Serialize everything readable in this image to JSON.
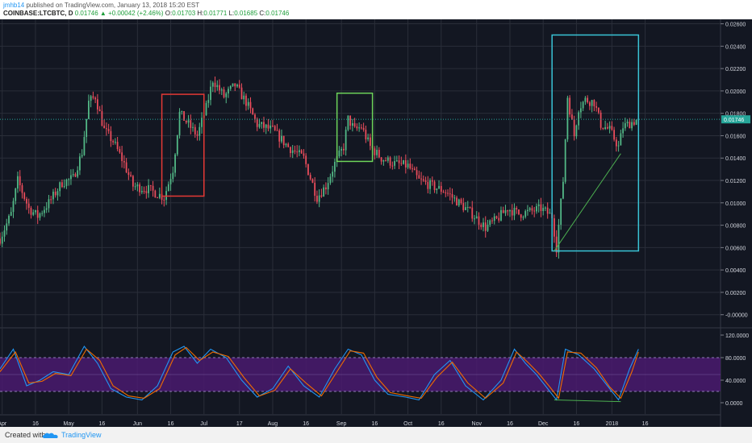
{
  "header": {
    "user": "jmhb14",
    "published": "published on TradingView.com, January 13, 2018 15:20 EST",
    "symbol": "COINBASE:LTCBTC, D",
    "last": "0.01746",
    "change": "+0.00042 (+2.46%)",
    "o_label": "O:",
    "o": "0.01703",
    "h_label": "H:",
    "h": "0.01771",
    "l_label": "L:",
    "l": "0.01685",
    "c_label": "C:",
    "c": "0.01746"
  },
  "footer": {
    "created": "Created with",
    "brand": "TradingView",
    "logo_icon": "tradingview-cloud-icon"
  },
  "colors": {
    "background": "#131722",
    "up": "#53b987",
    "down": "#eb4d5c",
    "grid": "#2a2e39",
    "rsi_band": "#4a1a6e",
    "red_box": "#e53935",
    "green_box": "#6dd35a",
    "cyan_box": "#39c4d6",
    "trend_line": "#4caf50",
    "current_price_line": "#26a69a"
  },
  "chart_data": [
    {
      "type": "candlestick",
      "title": "COINBASE:LTCBTC, D",
      "ylim": [
        -0.0011,
        0.0264
      ],
      "y_ticks": [
        "0.02600",
        "0.02400",
        "0.02200",
        "0.02000",
        "0.01800",
        "0.01600",
        "0.01400",
        "0.01200",
        "0.01000",
        "0.00800",
        "0.00600",
        "0.00400",
        "0.00200",
        "-0.00000"
      ],
      "y_tick_values": [
        0.026,
        0.024,
        0.022,
        0.02,
        0.018,
        0.016,
        0.014,
        0.012,
        0.01,
        0.008,
        0.006,
        0.004,
        0.002,
        0
      ],
      "current_price_label": "0.01746",
      "current_price": 0.01746,
      "price_path": [
        {
          "date": "2017-03-31",
          "v": 0.0068
        },
        {
          "date": "2017-04-05",
          "v": 0.009
        },
        {
          "date": "2017-04-08",
          "v": 0.012
        },
        {
          "date": "2017-04-13",
          "v": 0.0095
        },
        {
          "date": "2017-04-17",
          "v": 0.0088
        },
        {
          "date": "2017-04-22",
          "v": 0.01
        },
        {
          "date": "2017-04-28",
          "v": 0.0118
        },
        {
          "date": "2017-05-03",
          "v": 0.0122
        },
        {
          "date": "2017-05-07",
          "v": 0.0145
        },
        {
          "date": "2017-05-10",
          "v": 0.019
        },
        {
          "date": "2017-05-13",
          "v": 0.0195
        },
        {
          "date": "2017-05-17",
          "v": 0.0165
        },
        {
          "date": "2017-05-21",
          "v": 0.0155
        },
        {
          "date": "2017-05-26",
          "v": 0.0135
        },
        {
          "date": "2017-05-30",
          "v": 0.0115
        },
        {
          "date": "2017-06-06",
          "v": 0.0112
        },
        {
          "date": "2017-06-13",
          "v": 0.0105
        },
        {
          "date": "2017-06-17",
          "v": 0.013
        },
        {
          "date": "2017-06-20",
          "v": 0.018
        },
        {
          "date": "2017-06-24",
          "v": 0.017
        },
        {
          "date": "2017-06-28",
          "v": 0.016
        },
        {
          "date": "2017-07-02",
          "v": 0.0185
        },
        {
          "date": "2017-07-05",
          "v": 0.021
        },
        {
          "date": "2017-07-10",
          "v": 0.0195
        },
        {
          "date": "2017-07-15",
          "v": 0.0205
        },
        {
          "date": "2017-07-20",
          "v": 0.019
        },
        {
          "date": "2017-07-25",
          "v": 0.017
        },
        {
          "date": "2017-08-01",
          "v": 0.0165
        },
        {
          "date": "2017-08-08",
          "v": 0.015
        },
        {
          "date": "2017-08-15",
          "v": 0.014
        },
        {
          "date": "2017-08-21",
          "v": 0.0105
        },
        {
          "date": "2017-08-25",
          "v": 0.0115
        },
        {
          "date": "2017-08-29",
          "v": 0.0135
        },
        {
          "date": "2017-09-02",
          "v": 0.015
        },
        {
          "date": "2017-09-04",
          "v": 0.0175
        },
        {
          "date": "2017-09-07",
          "v": 0.0165
        },
        {
          "date": "2017-09-10",
          "v": 0.0168
        },
        {
          "date": "2017-09-14",
          "v": 0.015
        },
        {
          "date": "2017-09-19",
          "v": 0.014
        },
        {
          "date": "2017-09-25",
          "v": 0.0135
        },
        {
          "date": "2017-10-01",
          "v": 0.0133
        },
        {
          "date": "2017-10-06",
          "v": 0.012
        },
        {
          "date": "2017-10-12",
          "v": 0.0115
        },
        {
          "date": "2017-10-18",
          "v": 0.011
        },
        {
          "date": "2017-10-24",
          "v": 0.01
        },
        {
          "date": "2017-10-30",
          "v": 0.009
        },
        {
          "date": "2017-11-05",
          "v": 0.0078
        },
        {
          "date": "2017-11-10",
          "v": 0.0085
        },
        {
          "date": "2017-11-15",
          "v": 0.0095
        },
        {
          "date": "2017-11-20",
          "v": 0.009
        },
        {
          "date": "2017-11-25",
          "v": 0.0092
        },
        {
          "date": "2017-11-30",
          "v": 0.0095
        },
        {
          "date": "2017-12-05",
          "v": 0.0088
        },
        {
          "date": "2017-12-07",
          "v": 0.006
        },
        {
          "date": "2017-12-10",
          "v": 0.012
        },
        {
          "date": "2017-12-12",
          "v": 0.0195
        },
        {
          "date": "2017-12-15",
          "v": 0.016
        },
        {
          "date": "2017-12-17",
          "v": 0.0185
        },
        {
          "date": "2017-12-20",
          "v": 0.0192
        },
        {
          "date": "2017-12-24",
          "v": 0.019
        },
        {
          "date": "2017-12-27",
          "v": 0.017
        },
        {
          "date": "2017-12-31",
          "v": 0.0165
        },
        {
          "date": "2018-01-04",
          "v": 0.015
        },
        {
          "date": "2018-01-06",
          "v": 0.0168
        },
        {
          "date": "2018-01-10",
          "v": 0.0172
        },
        {
          "date": "2018-01-13",
          "v": 0.01746
        }
      ],
      "annotations": [
        {
          "shape": "rectangle",
          "color": "red",
          "x0": "2017-06-12",
          "x1": "2017-07-01",
          "y0": 0.0106,
          "y1": 0.0197
        },
        {
          "shape": "rectangle",
          "color": "green",
          "x0": "2017-08-30",
          "x1": "2017-09-15",
          "y0": 0.0137,
          "y1": 0.0198
        },
        {
          "shape": "rectangle",
          "color": "cyan",
          "x0": "2017-12-05",
          "x1": "2018-01-13",
          "y0": 0.0057,
          "y1": 0.025
        },
        {
          "shape": "trend_line",
          "color": "green",
          "x0": "2017-12-06",
          "y0": 0.0057,
          "x1": "2018-01-05",
          "y1": 0.0144
        }
      ]
    },
    {
      "type": "line",
      "title": "",
      "ylim": [
        -20,
        130
      ],
      "y_ticks": [
        "120.0000",
        "80.0000",
        "40.0000",
        "0.0000"
      ],
      "y_tick_values": [
        120,
        80,
        40,
        0
      ],
      "band": [
        20,
        80
      ],
      "series": [
        {
          "color": "#2196f3",
          "points": [
            {
              "date": "2017-03-31",
              "v": 60
            },
            {
              "date": "2017-04-06",
              "v": 95
            },
            {
              "date": "2017-04-12",
              "v": 30
            },
            {
              "date": "2017-04-18",
              "v": 40
            },
            {
              "date": "2017-04-24",
              "v": 55
            },
            {
              "date": "2017-05-01",
              "v": 50
            },
            {
              "date": "2017-05-08",
              "v": 100
            },
            {
              "date": "2017-05-14",
              "v": 70
            },
            {
              "date": "2017-05-20",
              "v": 25
            },
            {
              "date": "2017-05-27",
              "v": 10
            },
            {
              "date": "2017-06-03",
              "v": 5
            },
            {
              "date": "2017-06-10",
              "v": 30
            },
            {
              "date": "2017-06-17",
              "v": 90
            },
            {
              "date": "2017-06-22",
              "v": 100
            },
            {
              "date": "2017-06-28",
              "v": 70
            },
            {
              "date": "2017-07-04",
              "v": 95
            },
            {
              "date": "2017-07-11",
              "v": 80
            },
            {
              "date": "2017-07-18",
              "v": 40
            },
            {
              "date": "2017-07-25",
              "v": 10
            },
            {
              "date": "2017-08-01",
              "v": 25
            },
            {
              "date": "2017-08-08",
              "v": 65
            },
            {
              "date": "2017-08-15",
              "v": 30
            },
            {
              "date": "2017-08-22",
              "v": 10
            },
            {
              "date": "2017-08-29",
              "v": 60
            },
            {
              "date": "2017-09-04",
              "v": 95
            },
            {
              "date": "2017-09-10",
              "v": 85
            },
            {
              "date": "2017-09-16",
              "v": 40
            },
            {
              "date": "2017-09-22",
              "v": 15
            },
            {
              "date": "2017-09-30",
              "v": 10
            },
            {
              "date": "2017-10-06",
              "v": 5
            },
            {
              "date": "2017-10-13",
              "v": 50
            },
            {
              "date": "2017-10-20",
              "v": 75
            },
            {
              "date": "2017-10-27",
              "v": 30
            },
            {
              "date": "2017-11-04",
              "v": 5
            },
            {
              "date": "2017-11-12",
              "v": 40
            },
            {
              "date": "2017-11-18",
              "v": 95
            },
            {
              "date": "2017-11-23",
              "v": 70
            },
            {
              "date": "2017-11-28",
              "v": 50
            },
            {
              "date": "2017-12-03",
              "v": 25
            },
            {
              "date": "2017-12-07",
              "v": 5
            },
            {
              "date": "2017-12-11",
              "v": 95
            },
            {
              "date": "2017-12-17",
              "v": 85
            },
            {
              "date": "2017-12-24",
              "v": 60
            },
            {
              "date": "2017-12-31",
              "v": 25
            },
            {
              "date": "2018-01-04",
              "v": 5
            },
            {
              "date": "2018-01-09",
              "v": 60
            },
            {
              "date": "2018-01-13",
              "v": 95
            }
          ]
        },
        {
          "color": "#ef6c00",
          "points": [
            {
              "date": "2017-03-31",
              "v": 55
            },
            {
              "date": "2017-04-07",
              "v": 90
            },
            {
              "date": "2017-04-13",
              "v": 35
            },
            {
              "date": "2017-04-19",
              "v": 38
            },
            {
              "date": "2017-04-25",
              "v": 52
            },
            {
              "date": "2017-05-02",
              "v": 48
            },
            {
              "date": "2017-05-09",
              "v": 95
            },
            {
              "date": "2017-05-15",
              "v": 75
            },
            {
              "date": "2017-05-21",
              "v": 30
            },
            {
              "date": "2017-05-28",
              "v": 12
            },
            {
              "date": "2017-06-04",
              "v": 8
            },
            {
              "date": "2017-06-11",
              "v": 25
            },
            {
              "date": "2017-06-18",
              "v": 85
            },
            {
              "date": "2017-06-23",
              "v": 98
            },
            {
              "date": "2017-06-29",
              "v": 75
            },
            {
              "date": "2017-07-05",
              "v": 90
            },
            {
              "date": "2017-07-12",
              "v": 82
            },
            {
              "date": "2017-07-19",
              "v": 45
            },
            {
              "date": "2017-07-26",
              "v": 12
            },
            {
              "date": "2017-08-02",
              "v": 22
            },
            {
              "date": "2017-08-09",
              "v": 60
            },
            {
              "date": "2017-08-16",
              "v": 35
            },
            {
              "date": "2017-08-23",
              "v": 12
            },
            {
              "date": "2017-08-30",
              "v": 55
            },
            {
              "date": "2017-09-05",
              "v": 92
            },
            {
              "date": "2017-09-11",
              "v": 88
            },
            {
              "date": "2017-09-17",
              "v": 45
            },
            {
              "date": "2017-09-23",
              "v": 18
            },
            {
              "date": "2017-10-01",
              "v": 12
            },
            {
              "date": "2017-10-07",
              "v": 8
            },
            {
              "date": "2017-10-14",
              "v": 45
            },
            {
              "date": "2017-10-21",
              "v": 72
            },
            {
              "date": "2017-10-28",
              "v": 35
            },
            {
              "date": "2017-11-05",
              "v": 8
            },
            {
              "date": "2017-11-13",
              "v": 35
            },
            {
              "date": "2017-11-19",
              "v": 90
            },
            {
              "date": "2017-11-24",
              "v": 72
            },
            {
              "date": "2017-11-29",
              "v": 52
            },
            {
              "date": "2017-12-04",
              "v": 28
            },
            {
              "date": "2017-12-08",
              "v": 8
            },
            {
              "date": "2017-12-12",
              "v": 90
            },
            {
              "date": "2017-12-18",
              "v": 88
            },
            {
              "date": "2017-12-25",
              "v": 62
            },
            {
              "date": "2017-12-31",
              "v": 28
            },
            {
              "date": "2018-01-05",
              "v": 8
            },
            {
              "date": "2018-01-10",
              "v": 55
            },
            {
              "date": "2018-01-13",
              "v": 90
            }
          ]
        }
      ],
      "annotations": [
        {
          "shape": "trend_line",
          "color": "green",
          "x0": "2017-12-06",
          "y0": 5,
          "x1": "2018-01-05",
          "y1": 2
        }
      ]
    }
  ],
  "x_axis": {
    "range": [
      "2017-03-31",
      "2018-02-19"
    ],
    "ticks": [
      {
        "label": "Apr",
        "date": "2017-04-01"
      },
      {
        "label": "16",
        "date": "2017-04-16"
      },
      {
        "label": "May",
        "date": "2017-05-01"
      },
      {
        "label": "16",
        "date": "2017-05-16"
      },
      {
        "label": "Jun",
        "date": "2017-06-01"
      },
      {
        "label": "16",
        "date": "2017-06-16"
      },
      {
        "label": "Jul",
        "date": "2017-07-01"
      },
      {
        "label": "17",
        "date": "2017-07-17"
      },
      {
        "label": "Aug",
        "date": "2017-08-01"
      },
      {
        "label": "16",
        "date": "2017-08-16"
      },
      {
        "label": "Sep",
        "date": "2017-09-01"
      },
      {
        "label": "16",
        "date": "2017-09-16"
      },
      {
        "label": "Oct",
        "date": "2017-10-01"
      },
      {
        "label": "16",
        "date": "2017-10-16"
      },
      {
        "label": "Nov",
        "date": "2017-11-01"
      },
      {
        "label": "16",
        "date": "2017-11-16"
      },
      {
        "label": "Dec",
        "date": "2017-12-01"
      },
      {
        "label": "16",
        "date": "2017-12-16"
      },
      {
        "label": "2018",
        "date": "2018-01-01"
      },
      {
        "label": "16",
        "date": "2018-01-16"
      }
    ]
  }
}
